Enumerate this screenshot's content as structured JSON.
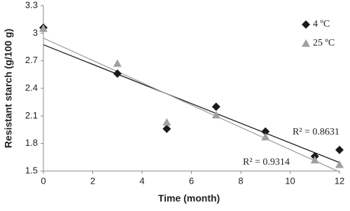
{
  "chart_data": {
    "type": "scatter",
    "x_label": "Time (month)",
    "y_label": "Resistant starch (g/100 g)",
    "x": [
      0,
      3,
      5,
      7,
      9,
      11,
      12
    ],
    "series": [
      {
        "name": "4 ºC",
        "color": "#1a1a1a",
        "marker": "diamond",
        "values": [
          3.06,
          2.56,
          1.96,
          2.2,
          1.93,
          1.66,
          1.73
        ],
        "trendline": true
      },
      {
        "name": "25 ºC",
        "color": "#a0a0a0",
        "marker": "triangle",
        "values": [
          3.05,
          2.67,
          2.03,
          2.11,
          1.87,
          1.62,
          1.57
        ],
        "trendline": true
      }
    ],
    "annotations": [
      "R² = 0.8631",
      "R² = 0.9314"
    ],
    "xlim": [
      0,
      12
    ],
    "xticks": [
      0,
      2,
      4,
      6,
      8,
      10,
      12
    ],
    "ylim": [
      1.5,
      3.3
    ],
    "yticks": [
      1.5,
      1.8,
      2.1,
      2.4,
      2.7,
      3,
      3.3
    ],
    "grid": false,
    "legend": "top-right"
  }
}
